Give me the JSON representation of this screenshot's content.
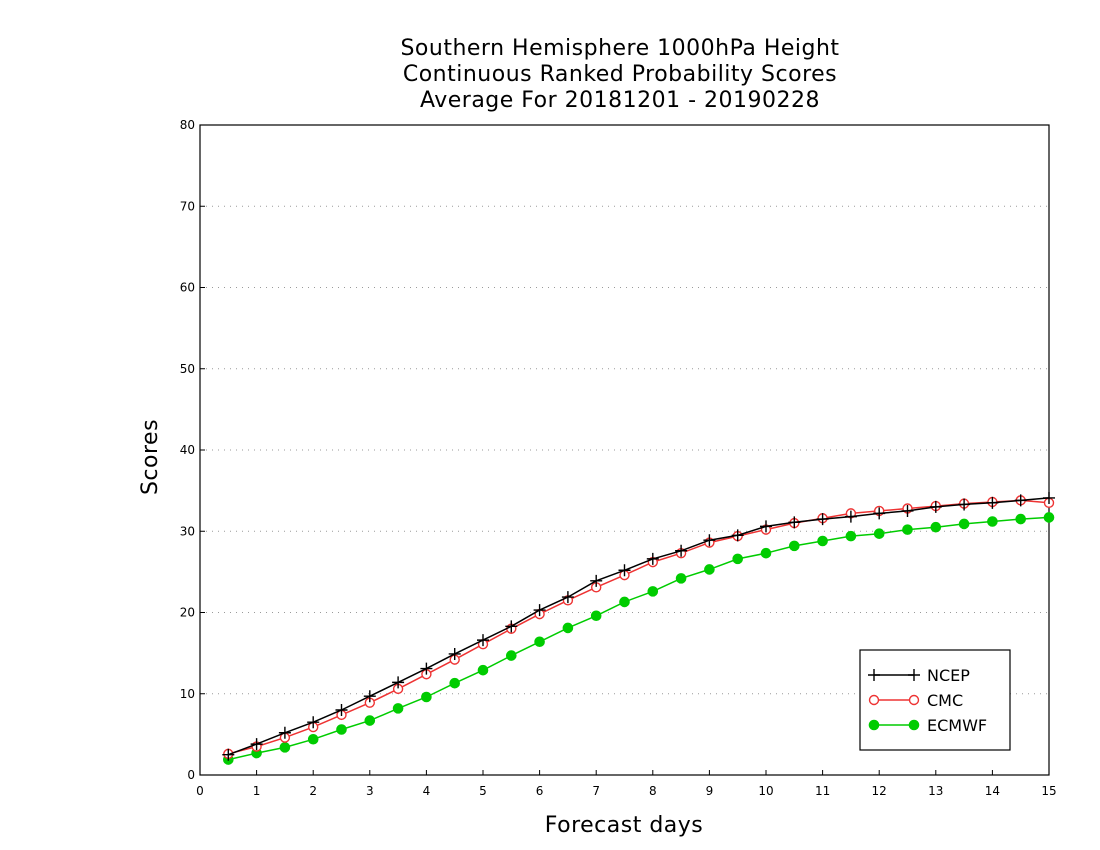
{
  "chart_data": {
    "type": "line",
    "title": [
      "Southern Hemisphere 1000hPa Height",
      "Continuous Ranked Probability Scores",
      "Average For 20181201 - 20190228"
    ],
    "xlabel": "Forecast days",
    "ylabel": "Scores",
    "xlim": [
      0,
      15
    ],
    "ylim": [
      0,
      80
    ],
    "xticks": [
      0,
      1,
      2,
      3,
      4,
      5,
      6,
      7,
      8,
      9,
      10,
      11,
      12,
      13,
      14,
      15
    ],
    "yticks": [
      0,
      10,
      20,
      30,
      40,
      50,
      60,
      70,
      80
    ],
    "grid": true,
    "legend_position": "bottom-right",
    "x": [
      0.5,
      1,
      1.5,
      2,
      2.5,
      3,
      3.5,
      4,
      4.5,
      5,
      5.5,
      6,
      6.5,
      7,
      7.5,
      8,
      8.5,
      9,
      9.5,
      10,
      10.5,
      11,
      11.5,
      12,
      12.5,
      13,
      13.5,
      14,
      14.5,
      15
    ],
    "series": [
      {
        "name": "NCEP",
        "color": "#000000",
        "marker": "plus",
        "values": [
          2.5,
          3.8,
          5.2,
          6.5,
          8.0,
          9.7,
          11.4,
          13.1,
          14.9,
          16.6,
          18.3,
          20.3,
          21.9,
          23.9,
          25.2,
          26.6,
          27.6,
          28.9,
          29.5,
          30.6,
          31.1,
          31.5,
          31.8,
          32.2,
          32.5,
          33.0,
          33.3,
          33.5,
          33.8,
          34.1
        ]
      },
      {
        "name": "CMC",
        "color": "#ee3333",
        "marker": "open-circle",
        "values": [
          2.6,
          3.5,
          4.6,
          5.9,
          7.4,
          8.9,
          10.6,
          12.4,
          14.2,
          16.1,
          18.0,
          19.8,
          21.5,
          23.1,
          24.6,
          26.2,
          27.3,
          28.6,
          29.4,
          30.2,
          31.0,
          31.6,
          32.2,
          32.5,
          32.8,
          33.1,
          33.4,
          33.6,
          33.8,
          33.5
        ]
      },
      {
        "name": "ECMWF",
        "color": "#00cc00",
        "marker": "filled-circle",
        "values": [
          1.9,
          2.7,
          3.4,
          4.4,
          5.6,
          6.7,
          8.2,
          9.6,
          11.3,
          12.9,
          14.7,
          16.4,
          18.1,
          19.6,
          21.3,
          22.6,
          24.2,
          25.3,
          26.6,
          27.3,
          28.2,
          28.8,
          29.4,
          29.7,
          30.2,
          30.5,
          30.9,
          31.2,
          31.5,
          31.7
        ]
      }
    ]
  }
}
